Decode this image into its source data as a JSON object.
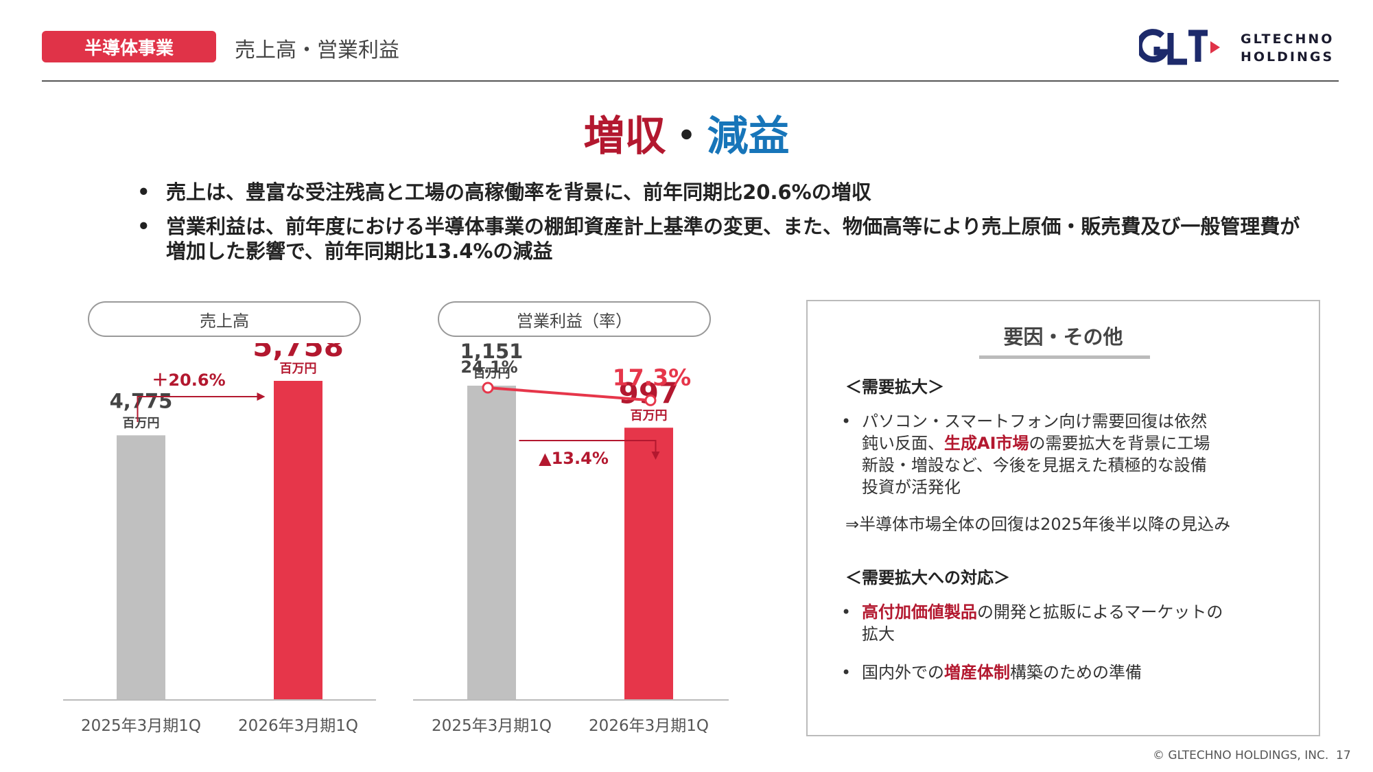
{
  "header": {
    "segment_tag": "半導体事業",
    "title": "売上高・営業利益",
    "logo_text_line1": "GLTECHNO",
    "logo_text_line2": "HOLDINGS"
  },
  "headline": {
    "part1": "増収",
    "separator": "・",
    "part2": "減益",
    "colors": {
      "part1": "#b3182f",
      "part2": "#1775b9"
    }
  },
  "bullets": [
    "売上は、豊富な受注残高と工場の高稼働率を背景に、前年同期比20.6%の増収",
    "営業利益は、前年度における半導体事業の棚卸資産計上基準の変更、また、物価高等により売上原価・販売費及び一般管理費が増加した影響で、前年同期比13.4%の減益"
  ],
  "chart_data": [
    {
      "type": "bar",
      "title": "売上高",
      "categories": [
        "2025年3月期1Q",
        "2026年3月期1Q"
      ],
      "values": [
        4775,
        5758
      ],
      "value_labels": [
        "4,775",
        "5,758"
      ],
      "unit": "百万円",
      "change_label": "＋20.6%",
      "ylim": [
        0,
        7000
      ],
      "colors": [
        "#c0c0c0",
        "#e6364a"
      ]
    },
    {
      "type": "bar",
      "title": "営業利益（率）",
      "categories": [
        "2025年3月期1Q",
        "2026年3月期1Q"
      ],
      "values": [
        1151,
        997
      ],
      "value_labels": [
        "1,151",
        "997"
      ],
      "unit": "百万円",
      "change_label": "▲13.4%",
      "margin_line": {
        "values": [
          24.1,
          17.3
        ],
        "labels": [
          "24.1%",
          "17.3%"
        ]
      },
      "ylim": [
        0,
        1550
      ],
      "colors": [
        "#c0c0c0",
        "#e6364a"
      ]
    }
  ],
  "factors": {
    "title": "要因・その他",
    "section1_heading": "＜需要拡大＞",
    "section1_bullet_pre": "パソコン・スマートフォン向け需要回復は依然",
    "section1_bullet_line2a": "鈍い反面、",
    "section1_bullet_highlight": "生成AI市場",
    "section1_bullet_line2b": "の需要拡大を背景に工場",
    "section1_bullet_line3": "新設・増設など、今後を見据えた積極的な設備",
    "section1_bullet_line4": "投資が活発化",
    "section1_conclusion": "⇒半導体市場全体の回復は2025年後半以降の見込み",
    "section2_heading": "＜需要拡大への対応＞",
    "section2_bullet1_highlight": "高付加価値製品",
    "section2_bullet1_rest": "の開発と拡販によるマーケットの",
    "section2_bullet1_line2": "拡大",
    "section2_bullet2_pre": "国内外での",
    "section2_bullet2_highlight": "増産体制",
    "section2_bullet2_rest": "構築のための準備"
  },
  "footer": {
    "copyright": "© GLTECHNO HOLDINGS, INC.",
    "page": "17"
  }
}
